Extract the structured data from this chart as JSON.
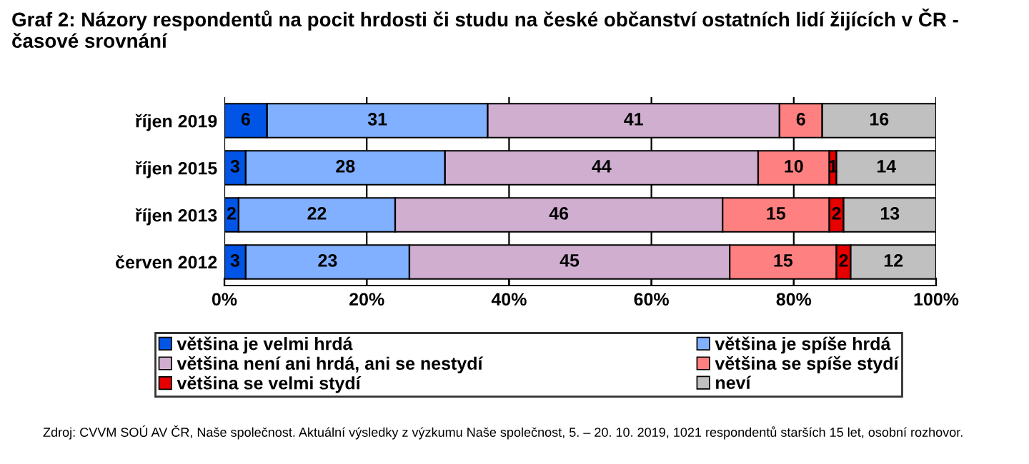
{
  "chart_data": {
    "type": "bar",
    "orientation": "horizontal",
    "stacked": true,
    "title": "Graf 2: Názory respondentů na pocit hrdosti či studu na české občanství ostatních lidí žijících v ČR - časové srovnání",
    "categories": [
      "říjen 2019",
      "říjen 2015",
      "říjen 2013",
      "červen 2012"
    ],
    "series": [
      {
        "name": "většina je velmi hrdá",
        "color": "#0055e6",
        "values": [
          6,
          3,
          2,
          3
        ],
        "value_labels": [
          "6",
          "3",
          "2",
          "3"
        ]
      },
      {
        "name": "většina je spíše hrdá",
        "color": "#80b0ff",
        "values": [
          31,
          28,
          22,
          23
        ],
        "value_labels": [
          "31",
          "28",
          "22",
          "23"
        ]
      },
      {
        "name": "většina není ani hrdá, ani se nestydí",
        "color": "#d0aed0",
        "values": [
          41,
          44,
          46,
          45
        ],
        "value_labels": [
          "41",
          "44",
          "46",
          "45"
        ]
      },
      {
        "name": "většina se spíše stydí",
        "color": "#ff8080",
        "values": [
          6,
          10,
          15,
          15
        ],
        "value_labels": [
          "6",
          "10",
          "15",
          "15"
        ]
      },
      {
        "name": "většina se velmi stydí",
        "color": "#e60000",
        "values": [
          null,
          1,
          2,
          2
        ],
        "value_labels": [
          null,
          "1",
          "2",
          "2"
        ]
      },
      {
        "name": "neví",
        "color": "#c0c0c0",
        "values": [
          16,
          14,
          13,
          12
        ],
        "value_labels": [
          "16",
          "14",
          "13",
          "12"
        ]
      }
    ],
    "xlim": [
      0,
      100
    ],
    "xticks": [
      {
        "value": 0,
        "label": "0%"
      },
      {
        "value": 20,
        "label": "20%"
      },
      {
        "value": 40,
        "label": "40%"
      },
      {
        "value": 60,
        "label": "60%"
      },
      {
        "value": 80,
        "label": "80%"
      },
      {
        "value": 100,
        "label": "100%"
      }
    ],
    "grid": "x",
    "legend": "bottom",
    "annotations": [
      "Zdroj: CVVM SOÚ AV ČR, Naše společnost. Aktuální výsledky z výzkumu Naše společnost, 5. – 20. 10. 2019, 1021 respondentů starších 15 let, osobní rozhovor."
    ]
  }
}
